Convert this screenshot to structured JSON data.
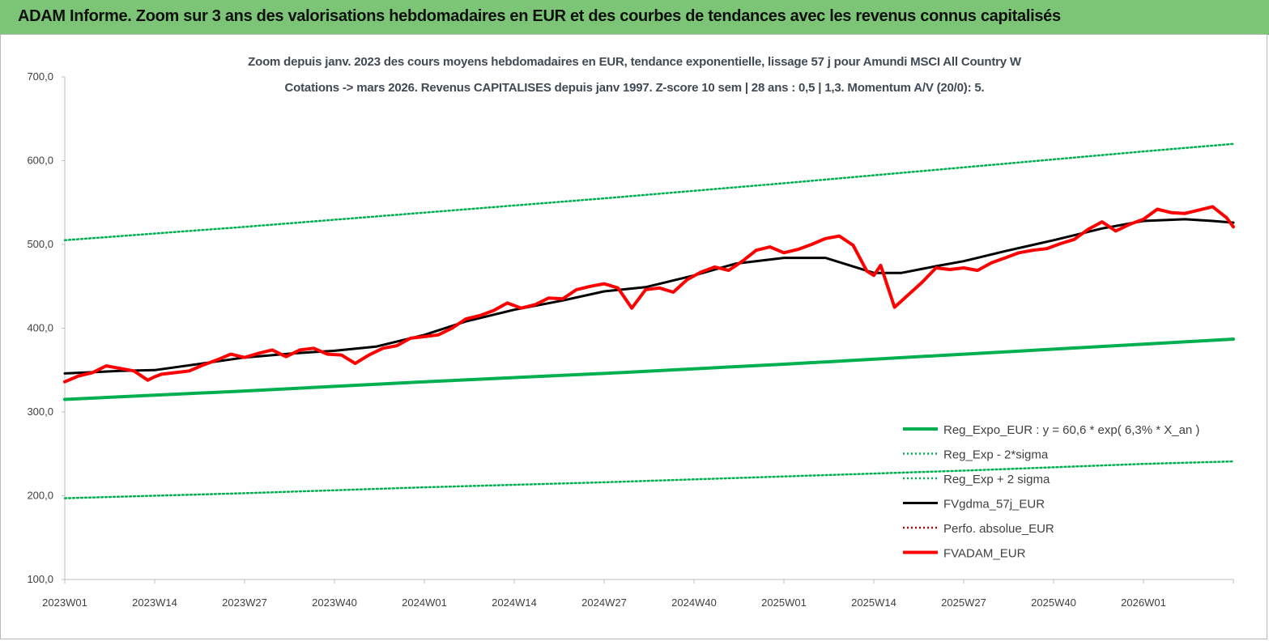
{
  "header": {
    "title": "ADAM Informe. Zoom sur 3 ans des valorisations hebdomadaires en EUR et des courbes de tendances avec les revenus connus capitalisés"
  },
  "colors": {
    "header_bg": "#7cc576",
    "reg_expo": "#00b050",
    "fvgdma": "#000000",
    "fvadam": "#ff0000",
    "perfo": "#c00000"
  },
  "chart_data": {
    "type": "line",
    "title": "Zoom depuis janv. 2023 des cours moyens hebdomadaires en EUR, tendance exponentielle, lissage 57 j pour Amundi MSCI All Country W",
    "subtitle": "Cotations -> mars 2026. Revenus CAPITALISES depuis janv 1997. Z-score 10 sem | 28 ans : 0,5 | 1,3. Momentum A/V (20/0): 5.",
    "xlabel": "",
    "ylabel": "",
    "ylim": [
      100,
      700
    ],
    "y_ticks": [
      "100,0",
      "200,0",
      "300,0",
      "400,0",
      "500,0",
      "600,0",
      "700,0"
    ],
    "x_ticks": [
      "2023W01",
      "2023W14",
      "2023W27",
      "2023W40",
      "2024W01",
      "2024W14",
      "2024W27",
      "2024W40",
      "2025W01",
      "2025W14",
      "2025W27",
      "2025W40",
      "2026W01"
    ],
    "x_tick_week_index": [
      0,
      13,
      26,
      39,
      52,
      65,
      78,
      91,
      104,
      117,
      130,
      143,
      156
    ],
    "x_last_week_index": 169,
    "grid": false,
    "legend_position": "bottom-right",
    "series": [
      {
        "name": "Reg_Expo_EUR : y = 60,6 * exp( 6,3% *  X_an )",
        "style": "solid-thick",
        "color": "#00b050",
        "x": [
          0,
          26,
          52,
          78,
          104,
          130,
          156,
          169
        ],
        "values": [
          315,
          325,
          336,
          346,
          357,
          369,
          381,
          387
        ]
      },
      {
        "name": "Reg_Exp - 2*sigma",
        "style": "dotted",
        "color": "#00b050",
        "x": [
          0,
          26,
          52,
          78,
          104,
          130,
          156,
          169
        ],
        "values": [
          197,
          203,
          210,
          216,
          223,
          230,
          238,
          241
        ]
      },
      {
        "name": "Reg_Exp + 2 sigma",
        "style": "dotted",
        "color": "#00b050",
        "x": [
          0,
          26,
          52,
          78,
          104,
          130,
          156,
          169
        ],
        "values": [
          505,
          521,
          538,
          555,
          573,
          592,
          611,
          620
        ]
      },
      {
        "name": "FVgdma_57j_EUR",
        "style": "solid",
        "color": "#000000",
        "x": [
          0,
          8,
          13,
          20,
          26,
          33,
          39,
          45,
          52,
          58,
          65,
          72,
          78,
          84,
          91,
          97,
          104,
          110,
          117,
          121,
          126,
          130,
          136,
          143,
          150,
          156,
          162,
          166,
          169
        ],
        "values": [
          346,
          349,
          350,
          358,
          365,
          370,
          373,
          378,
          392,
          408,
          422,
          433,
          444,
          449,
          463,
          477,
          484,
          484,
          466,
          466,
          474,
          480,
          492,
          505,
          519,
          528,
          530,
          528,
          526
        ]
      },
      {
        "name": "Perfo. absolue_EUR",
        "style": "dotted",
        "color": "#c00000",
        "x": [],
        "values": []
      },
      {
        "name": "FVADAM_EUR",
        "style": "solid-thick",
        "color": "#ff0000",
        "x": [
          0,
          2,
          4,
          6,
          8,
          10,
          12,
          13,
          14,
          16,
          18,
          20,
          22,
          24,
          26,
          28,
          30,
          32,
          34,
          36,
          38,
          40,
          42,
          44,
          46,
          48,
          50,
          52,
          54,
          56,
          58,
          60,
          62,
          64,
          66,
          68,
          70,
          72,
          74,
          76,
          78,
          80,
          82,
          84,
          86,
          88,
          90,
          92,
          94,
          96,
          98,
          100,
          102,
          104,
          106,
          108,
          110,
          112,
          114,
          116,
          117,
          118,
          120,
          122,
          124,
          126,
          128,
          130,
          132,
          134,
          136,
          138,
          140,
          142,
          144,
          146,
          148,
          150,
          152,
          154,
          156,
          158,
          160,
          162,
          164,
          166,
          168,
          169
        ],
        "values": [
          336,
          343,
          347,
          355,
          352,
          349,
          338,
          342,
          345,
          347,
          349,
          356,
          362,
          369,
          365,
          370,
          374,
          366,
          374,
          376,
          369,
          368,
          358,
          368,
          376,
          379,
          388,
          390,
          392,
          400,
          411,
          415,
          421,
          430,
          424,
          428,
          436,
          435,
          446,
          450,
          453,
          448,
          424,
          446,
          448,
          443,
          458,
          467,
          473,
          469,
          480,
          493,
          497,
          490,
          494,
          500,
          507,
          510,
          499,
          468,
          463,
          475,
          425,
          440,
          455,
          472,
          470,
          472,
          469,
          478,
          484,
          490,
          493,
          495,
          501,
          506,
          518,
          527,
          516,
          524,
          530,
          542,
          538,
          537,
          541,
          545,
          532,
          521
        ]
      }
    ]
  }
}
